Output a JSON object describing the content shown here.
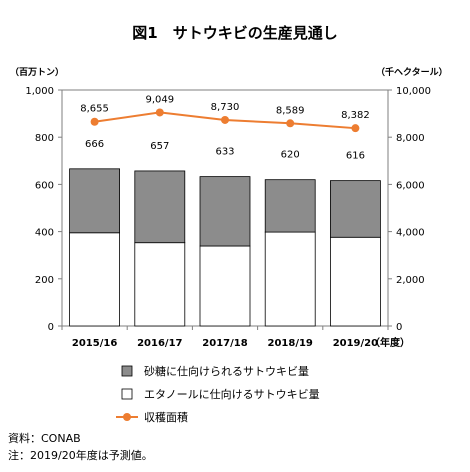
{
  "page": {
    "title": "図1　サトウキビの生産見通し"
  },
  "chart_data": {
    "type": "bar",
    "categories": [
      "2015/16",
      "2016/17",
      "2017/18",
      "2018/19",
      "2019/20"
    ],
    "x_unit": "（年度）",
    "y_left": {
      "unit_label": "（百万トン）",
      "ylim": [
        0,
        1000
      ],
      "ticks": [
        "0",
        "200",
        "400",
        "600",
        "800",
        "1,000"
      ]
    },
    "y_right": {
      "unit_label": "（千ヘクタール）",
      "ylim": [
        0,
        10000
      ],
      "ticks": [
        "0",
        "2,000",
        "4,000",
        "6,000",
        "8,000",
        "10,000"
      ]
    },
    "series": [
      {
        "name": "エタノールに仕向けるサトウキビ量",
        "kind": "stacked-bar-bottom",
        "color": "#ffffff",
        "values": [
          395,
          353,
          339,
          398,
          376
        ]
      },
      {
        "name": "砂糖に仕向けられるサトウキビ量",
        "kind": "stacked-bar-top",
        "color": "#8c8c8c",
        "values": [
          271,
          304,
          294,
          222,
          240
        ]
      },
      {
        "name": "収穫面積",
        "kind": "line",
        "axis": "right",
        "color": "#ed7d31",
        "values": [
          8655,
          9049,
          8730,
          8589,
          8382
        ],
        "labels": [
          "8,655",
          "9,049",
          "8,730",
          "8,589",
          "8,382"
        ]
      }
    ],
    "total_labels": [
      "666",
      "657",
      "633",
      "620",
      "616"
    ],
    "legend": [
      {
        "label": "砂糖に仕向けられるサトウキビ量",
        "symbol": "box-gray"
      },
      {
        "label": "エタノールに仕向けるサトウキビ量",
        "symbol": "box-white"
      },
      {
        "label": "収穫面積",
        "symbol": "line-marker"
      }
    ],
    "legend_position": "bottom-center",
    "grid": false
  },
  "notes": {
    "source": "資料：CONAB",
    "note": "注：2019/20年度は予測値。"
  }
}
